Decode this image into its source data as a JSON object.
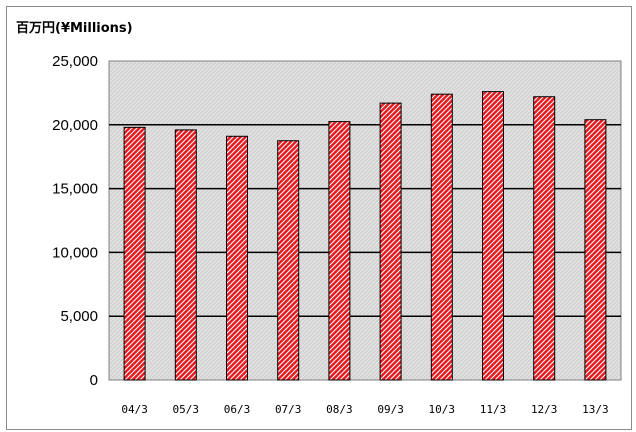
{
  "chart_data": {
    "type": "bar",
    "unit_label": "百万円(¥Millions)",
    "categories": [
      "04/3",
      "05/3",
      "06/3",
      "07/3",
      "08/3",
      "09/3",
      "10/3",
      "11/3",
      "12/3",
      "13/3"
    ],
    "values": [
      19800,
      19600,
      19100,
      18750,
      20250,
      21700,
      22400,
      22600,
      22200,
      20400
    ],
    "ylim": [
      0,
      25000
    ],
    "yticks": [
      0,
      5000,
      10000,
      15000,
      20000,
      25000
    ],
    "ytick_labels": [
      "0",
      "5,000",
      "10,000",
      "15,000",
      "20,000",
      "25,000"
    ],
    "grid": true,
    "legend": "none",
    "colors": {
      "bar_fill": "#e8191e",
      "bar_hatch": "#ffffff",
      "plot_background": "#d9d9d9",
      "gridline": "#000000"
    }
  }
}
